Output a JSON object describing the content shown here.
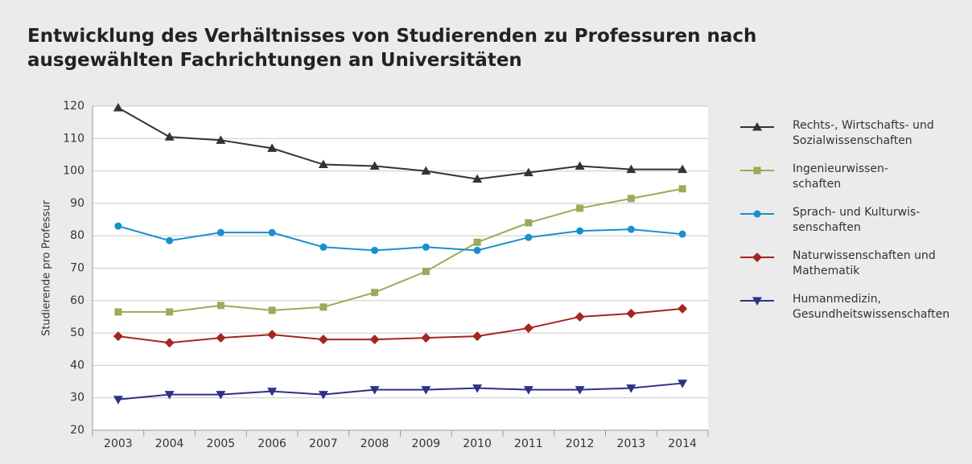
{
  "chart_data": {
    "type": "line",
    "title": "Entwicklung des Verhältnisses von Studierenden zu Professuren nach\nausgewählten Fachrichtungen an Universitäten",
    "y_label": "Studierende pro Professur",
    "categories": [
      "2003",
      "2004",
      "2005",
      "2006",
      "2007",
      "2008",
      "2009",
      "2010",
      "2011",
      "2012",
      "2013",
      "2014"
    ],
    "ylim": [
      20,
      120
    ],
    "yticks": [
      20,
      30,
      40,
      50,
      60,
      70,
      80,
      90,
      100,
      110,
      120
    ],
    "grid": true,
    "series": [
      {
        "name": "Rechts-, Wirtschafts- und\nSozialwissenschaften",
        "color": "#333333",
        "marker": "triangle-up",
        "values": [
          119.5,
          110.5,
          109.5,
          107,
          102,
          101.5,
          100,
          97.5,
          99.5,
          101.5,
          100.5,
          100.5
        ]
      },
      {
        "name": "Ingenieurwissen-\nschaften",
        "color": "#9aab5a",
        "marker": "square",
        "values": [
          56.5,
          56.5,
          58.5,
          57,
          58,
          62.5,
          69,
          78,
          84,
          88.5,
          91.5,
          94.5
        ]
      },
      {
        "name": "Sprach- und Kulturwis-\nsenschaften",
        "color": "#1a8fd0",
        "marker": "circle",
        "values": [
          83,
          78.5,
          81,
          81,
          76.5,
          75.5,
          76.5,
          75.5,
          79.5,
          81.5,
          82,
          80.5
        ]
      },
      {
        "name": "Naturwissenschaften und\nMathematik",
        "color": "#a3261f",
        "marker": "diamond",
        "values": [
          49,
          47,
          48.5,
          49.5,
          48,
          48,
          48.5,
          49,
          51.5,
          55,
          56,
          57.5
        ]
      },
      {
        "name": "Humanmedizin,\nGesundheitswissenschaften",
        "color": "#2e3283",
        "marker": "triangle-down",
        "values": [
          29.5,
          31,
          31,
          32,
          31,
          32.5,
          32.5,
          33,
          32.5,
          32.5,
          33,
          34.5
        ]
      }
    ]
  }
}
